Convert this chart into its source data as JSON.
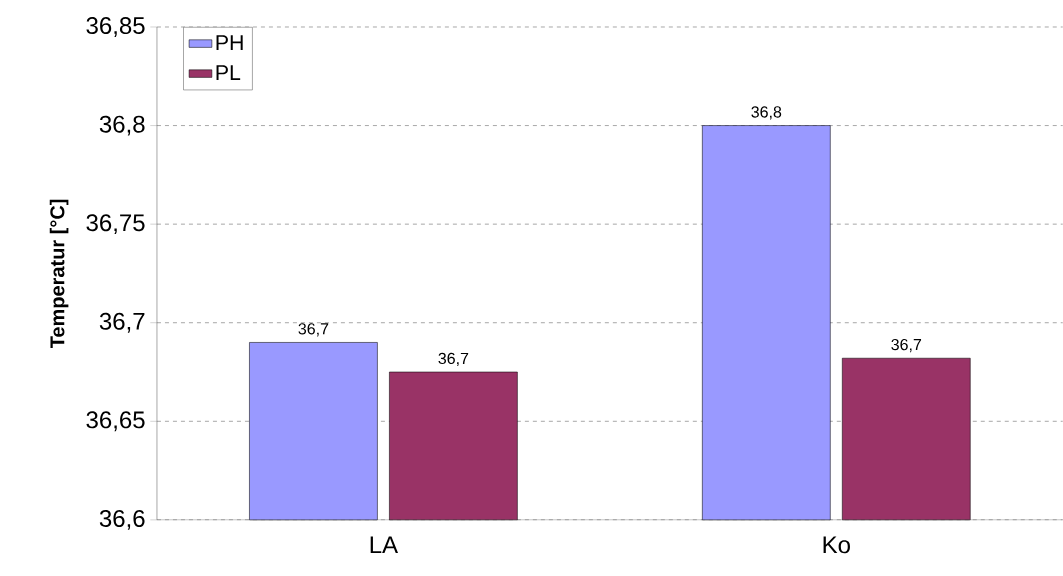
{
  "chart_data": {
    "type": "bar",
    "ylabel": "Temperatur [°C]",
    "categories": [
      "LA",
      "Ko"
    ],
    "series": [
      {
        "name": "PH",
        "color": "#9999ff",
        "values": [
          36.69,
          36.8
        ],
        "value_labels": [
          "36,7",
          "36,8"
        ]
      },
      {
        "name": "PL",
        "color": "#993366",
        "values": [
          36.675,
          36.682
        ],
        "value_labels": [
          "36,7",
          "36,7"
        ]
      }
    ],
    "ylim": [
      36.6,
      36.85
    ],
    "yticks": [
      {
        "value": 36.6,
        "label": "36,6"
      },
      {
        "value": 36.65,
        "label": "36,65"
      },
      {
        "value": 36.7,
        "label": "36,7"
      },
      {
        "value": 36.75,
        "label": "36,75"
      },
      {
        "value": 36.8,
        "label": "36,8"
      },
      {
        "value": 36.85,
        "label": "36,85"
      }
    ],
    "grid": "y",
    "legend": "top left"
  }
}
